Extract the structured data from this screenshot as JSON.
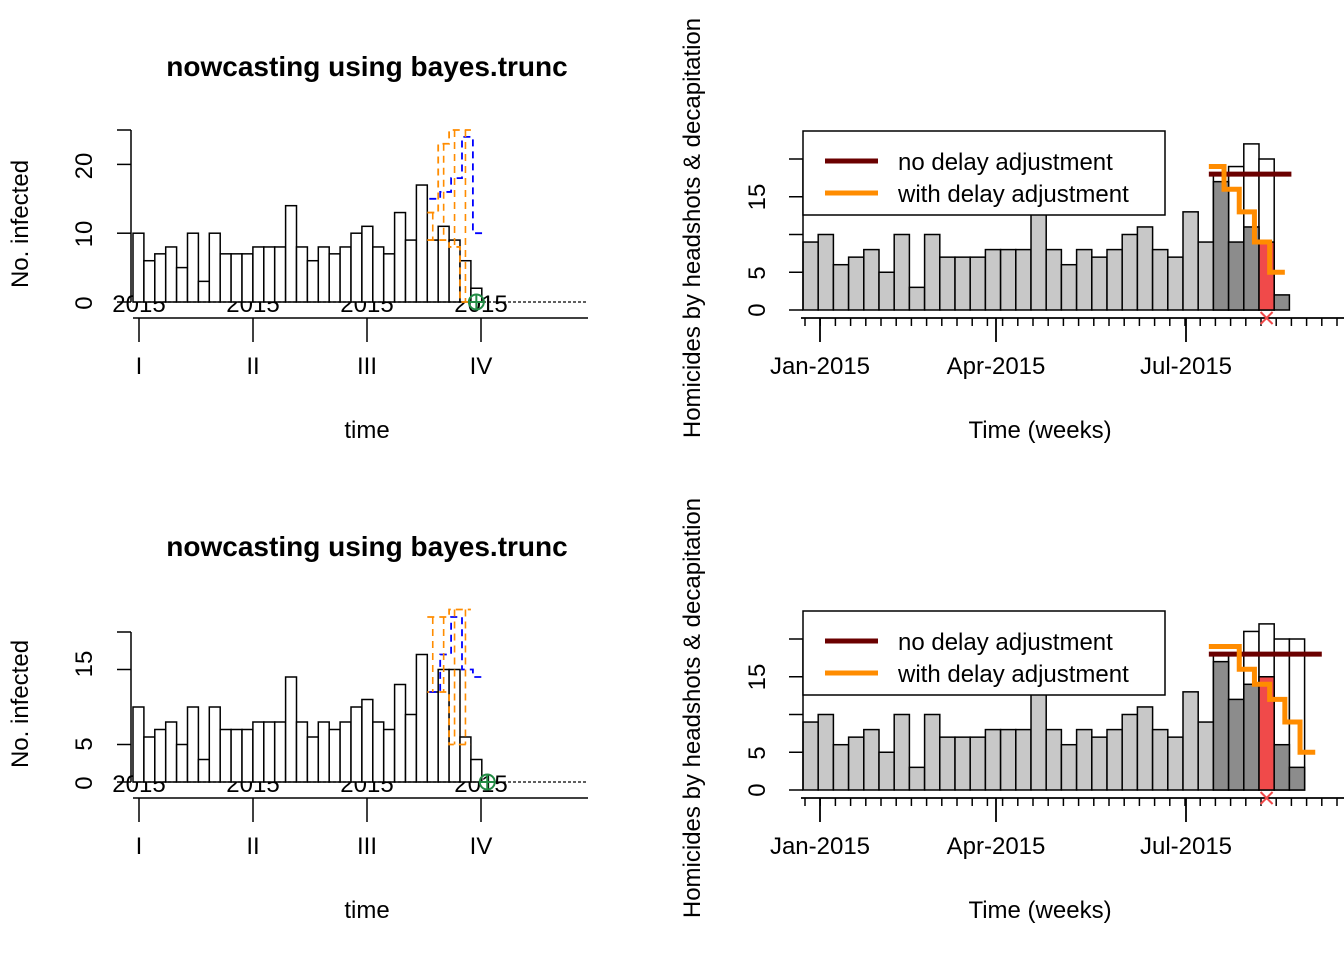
{
  "colors": {
    "background": "#ffffff",
    "bar_outline": "#000000",
    "bar_open_fill": "#ffffff",
    "bar_light": "#c8c8c8",
    "bar_dark": "#8c8c8c",
    "bar_red": "#f04a4a",
    "nowcast_blue": "#0000ff",
    "nowcast_orange": "#ff8c00",
    "marker_green": "#228b44",
    "line_no_delay": "#6b0000",
    "line_with_delay": "#ff8c00"
  },
  "chart_data": [
    {
      "id": "nowcast-top",
      "type": "bar",
      "title": "nowcasting using bayes.trunc",
      "xlabel": "time",
      "ylabel": "No. infected",
      "ylim": [
        0,
        25
      ],
      "y_ticks": [
        0,
        10,
        20
      ],
      "x_year_labels": [
        "2015",
        "2015",
        "2015",
        "2015"
      ],
      "x_quarter_labels": [
        "I",
        "II",
        "III",
        "IV"
      ],
      "n_weeks": 52,
      "values": [
        10,
        6,
        7,
        8,
        5,
        10,
        3,
        10,
        7,
        7,
        7,
        8,
        8,
        8,
        14,
        8,
        6,
        8,
        7,
        8,
        10,
        11,
        8,
        7,
        13,
        9,
        17,
        9,
        11,
        9,
        6,
        2
      ],
      "nowcast_median": [
        15,
        16,
        18,
        24,
        10
      ],
      "nowcast_upper": [
        13,
        23,
        25,
        25
      ],
      "nowcast_lower": [
        9,
        9,
        8,
        0
      ],
      "now_week": 31,
      "grid": false
    },
    {
      "id": "delay-top",
      "type": "bar",
      "title": "",
      "xlabel": "Time (weeks)",
      "ylabel": "Homicides by headshots & decapitation",
      "ylim": [
        0,
        20
      ],
      "y_ticks": [
        0,
        5,
        15
      ],
      "x_tick_labels": [
        "Jan-2015",
        "Apr-2015",
        "Jul-2015"
      ],
      "values": [
        9,
        10,
        6,
        7,
        8,
        5,
        10,
        3,
        10,
        7,
        7,
        7,
        8,
        8,
        8,
        14,
        8,
        6,
        8,
        7,
        8,
        10,
        11,
        8,
        7,
        13,
        9,
        17,
        9,
        11,
        9,
        2
      ],
      "light_count": 26,
      "red_index": 30,
      "open_bar_tops": [
        18,
        19,
        22,
        20
      ],
      "open_start_index": 27,
      "no_delay_level": 18,
      "with_delay_steps": [
        19,
        16,
        13,
        9,
        5
      ],
      "with_delay_start_index": 27,
      "legend": {
        "position": "top-left",
        "items": [
          "no delay adjustment",
          "with delay adjustment"
        ]
      },
      "grid": false
    },
    {
      "id": "nowcast-bottom",
      "type": "bar",
      "title": "nowcasting using bayes.trunc",
      "xlabel": "time",
      "ylabel": "No. infected",
      "ylim": [
        0,
        20
      ],
      "y_ticks": [
        0,
        5,
        15
      ],
      "x_year_labels": [
        "2015",
        "2015",
        "2015",
        "2015"
      ],
      "x_quarter_labels": [
        "I",
        "II",
        "III",
        "IV"
      ],
      "n_weeks": 52,
      "values": [
        10,
        6,
        7,
        8,
        5,
        10,
        3,
        10,
        7,
        7,
        7,
        8,
        8,
        8,
        14,
        8,
        6,
        8,
        7,
        8,
        10,
        11,
        8,
        7,
        13,
        9,
        17,
        12,
        15,
        15,
        6,
        3
      ],
      "nowcast_median": [
        12,
        17,
        22,
        15,
        14
      ],
      "nowcast_upper": [
        22,
        22,
        23,
        23
      ],
      "nowcast_lower": [
        12,
        12,
        5,
        5
      ],
      "now_week": 32,
      "grid": false
    },
    {
      "id": "delay-bottom",
      "type": "bar",
      "title": "",
      "xlabel": "Time (weeks)",
      "ylabel": "Homicides by headshots & decapitation",
      "ylim": [
        0,
        20
      ],
      "y_ticks": [
        0,
        5,
        15
      ],
      "x_tick_labels": [
        "Jan-2015",
        "Apr-2015",
        "Jul-2015"
      ],
      "values": [
        9,
        10,
        6,
        7,
        8,
        5,
        10,
        3,
        10,
        7,
        7,
        7,
        8,
        8,
        8,
        14,
        8,
        6,
        8,
        7,
        8,
        10,
        11,
        8,
        7,
        13,
        9,
        17,
        12,
        14,
        15,
        6,
        3
      ],
      "light_count": 26,
      "red_index": 30,
      "open_bar_tops": [
        18,
        18,
        21,
        22,
        20,
        20
      ],
      "open_start_index": 27,
      "no_delay_level": 18,
      "with_delay_steps": [
        19,
        19,
        16,
        14,
        12,
        9,
        5
      ],
      "with_delay_start_index": 27,
      "legend": {
        "position": "top-left",
        "items": [
          "no delay adjustment",
          "with delay adjustment"
        ]
      },
      "grid": false
    }
  ]
}
